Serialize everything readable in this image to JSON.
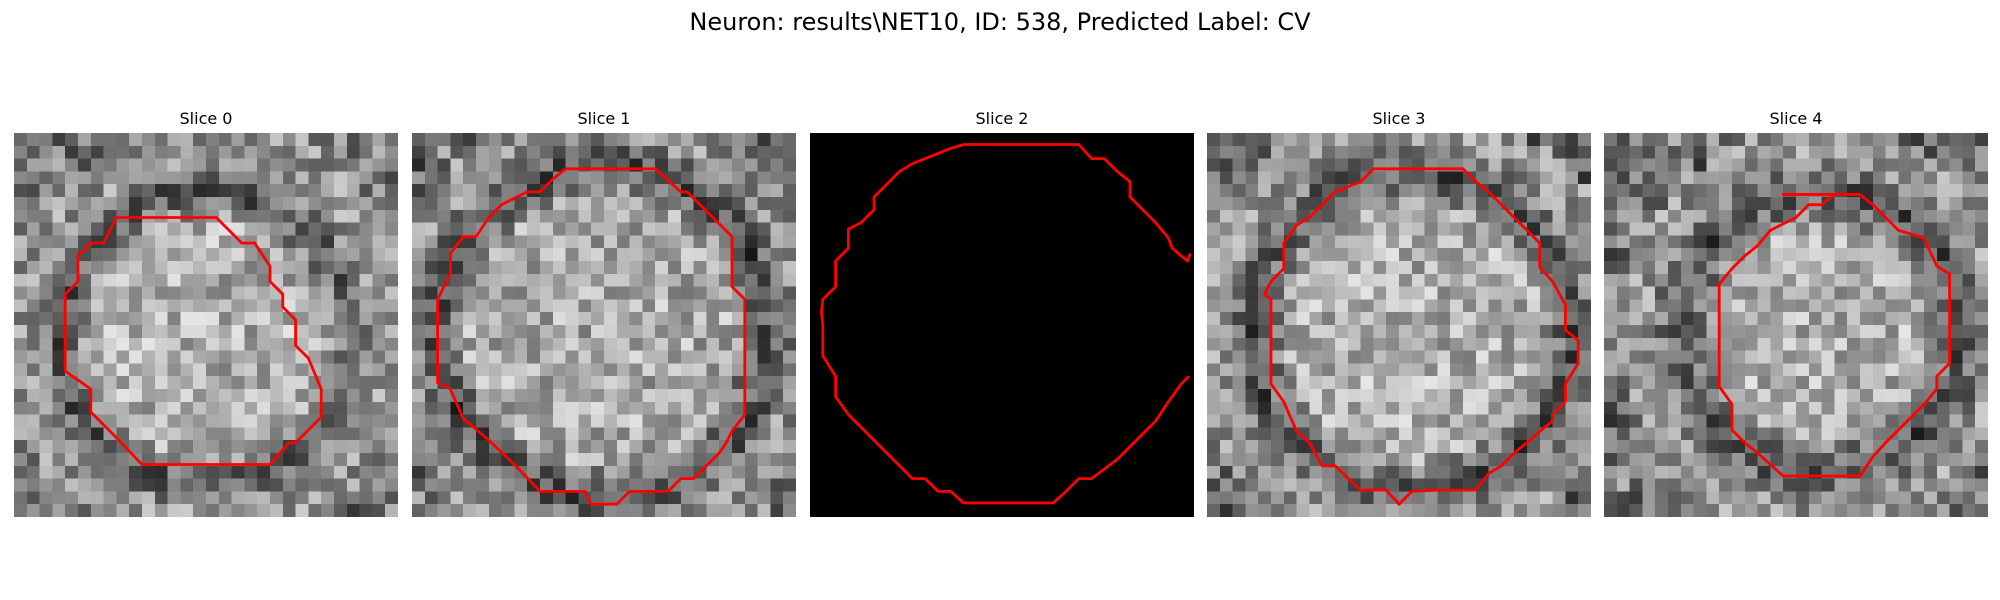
{
  "figure": {
    "title": "Neuron: results\\NET10, ID: 538, Predicted Label: CV"
  },
  "colors": {
    "outline": "#ff0000",
    "background": "#ffffff",
    "text": "#000000"
  },
  "panels": [
    {
      "title": "Slice 0",
      "content": "grayscale-noise",
      "outline": "contour"
    },
    {
      "title": "Slice 1",
      "content": "grayscale-noise",
      "outline": "contour"
    },
    {
      "title": "Slice 2",
      "content": "black",
      "outline": "contour"
    },
    {
      "title": "Slice 3",
      "content": "grayscale-noise",
      "outline": "contour"
    },
    {
      "title": "Slice 4",
      "content": "grayscale-noise",
      "outline": "contour"
    }
  ]
}
